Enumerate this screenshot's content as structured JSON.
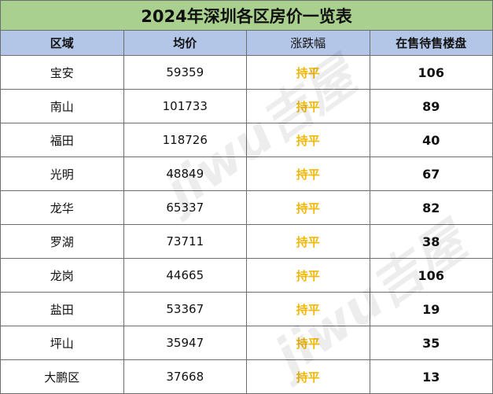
{
  "title": "2024年深圳各区房价一览表",
  "headers": [
    "区域",
    "均价",
    "涨跌幅",
    "在售待售楼盘"
  ],
  "rows": [
    {
      "district": "宝安",
      "avg_price": "59359",
      "change": "持平",
      "listings": "106"
    },
    {
      "district": "南山",
      "avg_price": "101733",
      "change": "持平",
      "listings": "89"
    },
    {
      "district": "福田",
      "avg_price": "118726",
      "change": "持平",
      "listings": "40"
    },
    {
      "district": "光明",
      "avg_price": "48849",
      "change": "持平",
      "listings": "67"
    },
    {
      "district": "龙华",
      "avg_price": "65337",
      "change": "持平",
      "listings": "82"
    },
    {
      "district": "罗湖",
      "avg_price": "73711",
      "change": "持平",
      "listings": "38"
    },
    {
      "district": "龙岗",
      "avg_price": "44665",
      "change": "持平",
      "listings": "106"
    },
    {
      "district": "盐田",
      "avg_price": "53367",
      "change": "持平",
      "listings": "19"
    },
    {
      "district": "坪山",
      "avg_price": "35947",
      "change": "持平",
      "listings": "35"
    },
    {
      "district": "大鹏区",
      "avg_price": "37668",
      "change": "持平",
      "listings": "13"
    }
  ],
  "watermark": "jiwu吉屋",
  "colors": {
    "title_bg": "#a9d08e",
    "header_bg": "#b4c6e7",
    "change_text": "#f2b705"
  }
}
